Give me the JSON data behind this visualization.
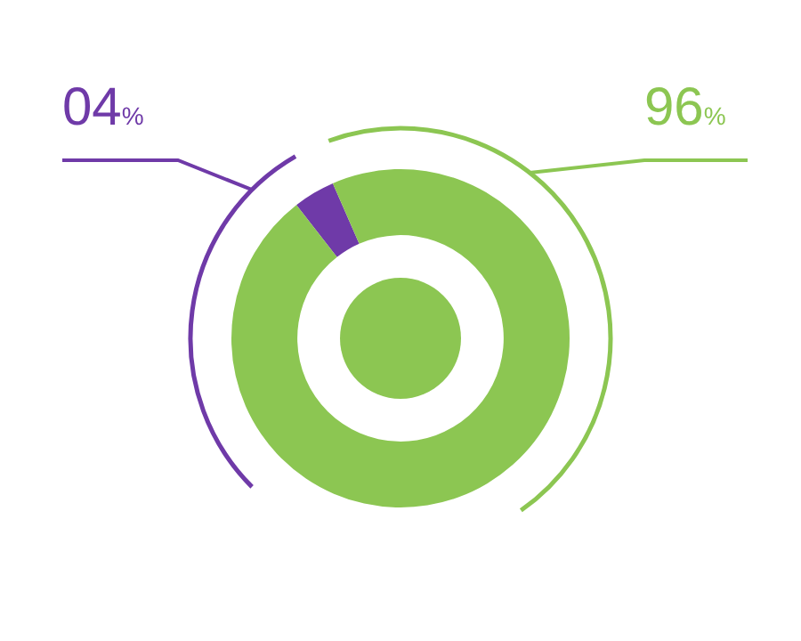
{
  "chart_data": {
    "type": "donut",
    "categories": [
      null,
      null
    ],
    "values": [
      4,
      96
    ],
    "colors": [
      "#6f3aa8",
      "#8cc652"
    ],
    "value_labels": [
      "04%",
      "96%"
    ],
    "legend": false
  }
}
